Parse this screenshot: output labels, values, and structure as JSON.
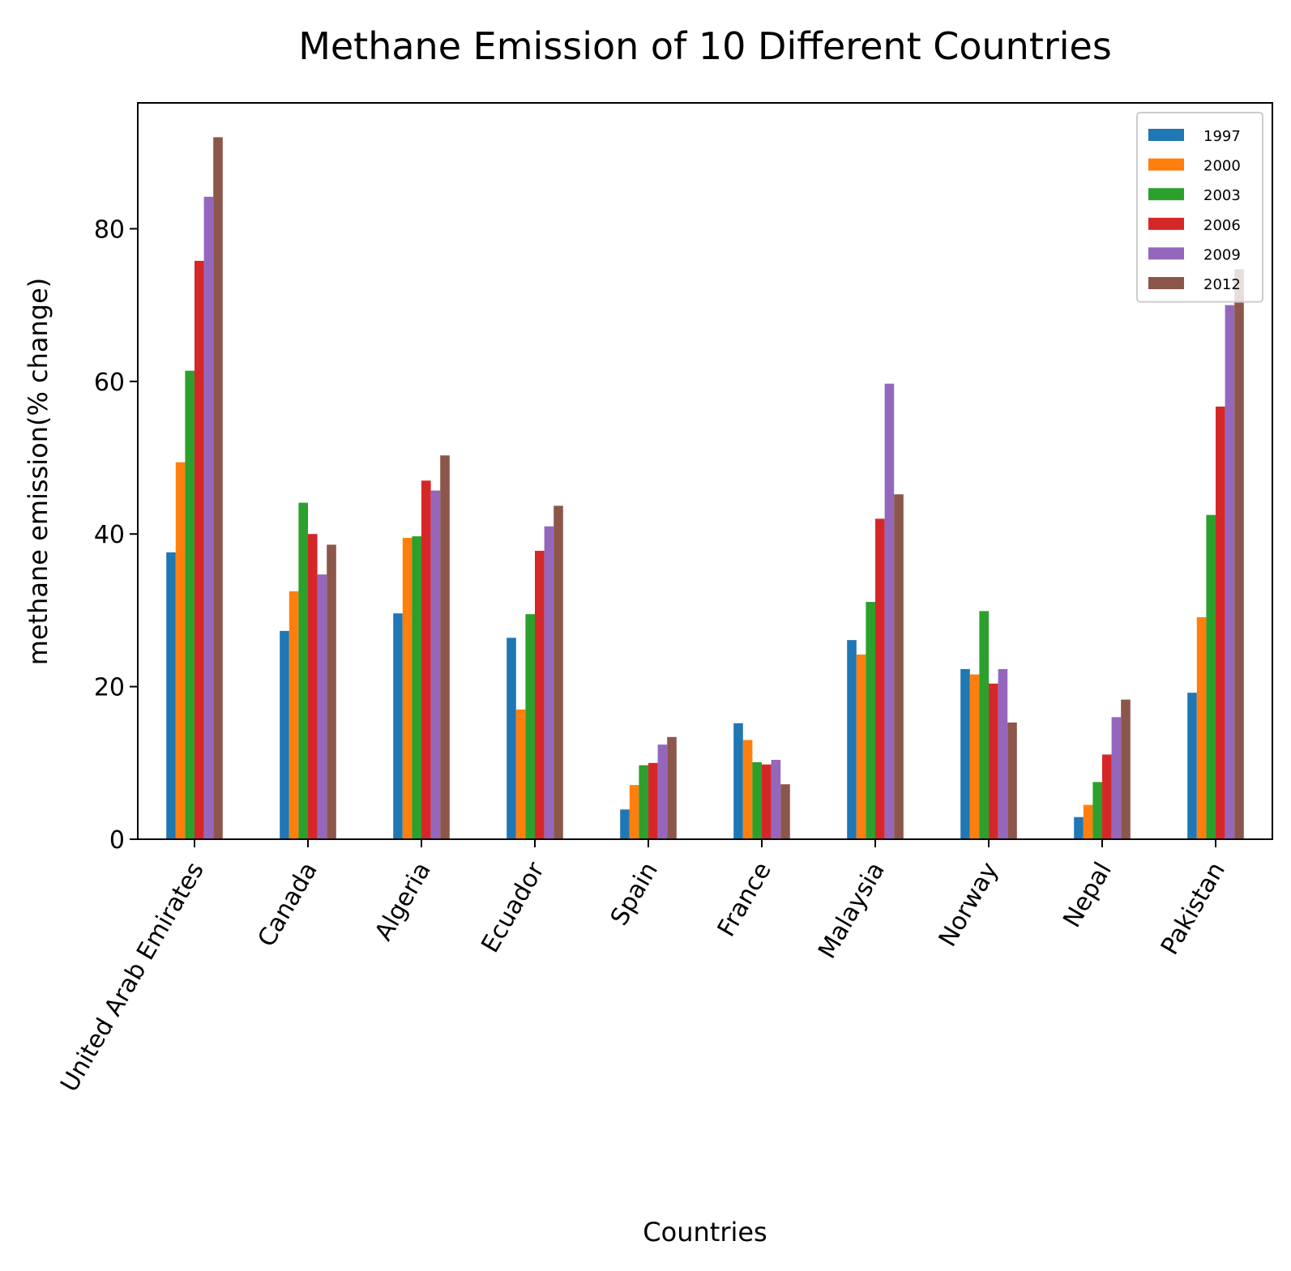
{
  "chart_data": {
    "type": "bar",
    "title": "Methane Emission of 10 Different Countries",
    "xlabel": "Countries",
    "ylabel": "methane emission(% change)",
    "ylim": [
      0,
      96.5
    ],
    "yticks": [
      0,
      20,
      40,
      60,
      80
    ],
    "grid": false,
    "legend_position": "top-right",
    "categories": [
      "United Arab Emirates",
      "Canada",
      "Algeria",
      "Ecuador",
      "Spain",
      "France",
      "Malaysia",
      "Norway",
      "Nepal",
      "Pakistan"
    ],
    "series": [
      {
        "name": "1997",
        "color": "#1f77b4",
        "values": [
          37.6,
          27.3,
          29.6,
          26.4,
          3.9,
          15.2,
          26.1,
          22.3,
          2.9,
          19.2
        ]
      },
      {
        "name": "2000",
        "color": "#ff7f0e",
        "values": [
          49.4,
          32.5,
          39.5,
          17.0,
          7.1,
          13.0,
          24.2,
          21.6,
          4.5,
          29.1
        ]
      },
      {
        "name": "2003",
        "color": "#2ca02c",
        "values": [
          61.4,
          44.1,
          39.7,
          29.5,
          9.7,
          10.1,
          31.1,
          29.9,
          7.5,
          42.5
        ]
      },
      {
        "name": "2006",
        "color": "#d62728",
        "values": [
          75.8,
          40.0,
          47.0,
          37.8,
          10.0,
          9.8,
          42.0,
          20.4,
          11.1,
          56.7
        ]
      },
      {
        "name": "2009",
        "color": "#9467bd",
        "values": [
          84.2,
          34.7,
          45.7,
          41.0,
          12.4,
          10.4,
          59.7,
          22.3,
          16.0,
          70.0
        ]
      },
      {
        "name": "2012",
        "color": "#8c564b",
        "values": [
          92.0,
          38.6,
          50.3,
          43.7,
          13.4,
          7.2,
          45.2,
          15.3,
          18.3,
          74.7
        ]
      }
    ]
  }
}
